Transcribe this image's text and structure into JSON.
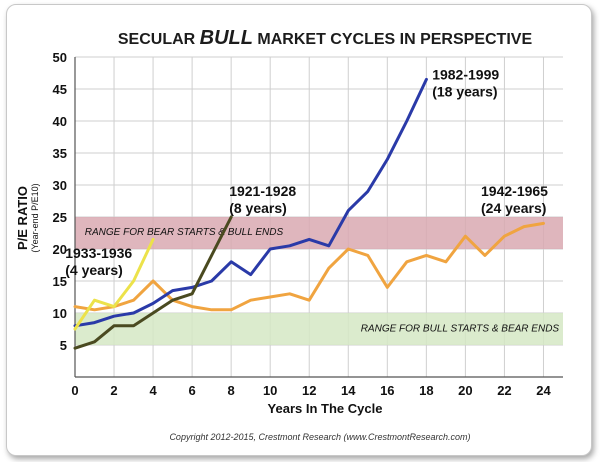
{
  "chart_data": {
    "type": "line",
    "title_parts": [
      "SECULAR ",
      "BULL",
      " MARKET CYCLES IN PERSPECTIVE"
    ],
    "xlabel": "Years In The Cycle",
    "ylabel": "P/E RATIO",
    "ylabel_sub": "(Year-end P/E10)",
    "xlim": [
      0,
      25
    ],
    "ylim": [
      0,
      50
    ],
    "x_ticks": [
      0,
      2,
      4,
      6,
      8,
      10,
      12,
      14,
      16,
      18,
      20,
      22,
      24
    ],
    "y_ticks": [
      5,
      10,
      15,
      20,
      25,
      30,
      35,
      40,
      45,
      50
    ],
    "grid": true,
    "bands": [
      {
        "label": "RANGE FOR BEAR STARTS & BULL ENDS",
        "y_from": 20,
        "y_to": 25,
        "color": "#d9a9b1",
        "label_x": 0.5,
        "label_y": 22.8,
        "anchor": "start"
      },
      {
        "label": "RANGE FOR BULL STARTS & BEAR ENDS",
        "y_from": 5,
        "y_to": 10,
        "color": "#d5e7c4",
        "label_x": 24.8,
        "label_y": 7.7,
        "anchor": "end"
      }
    ],
    "series": [
      {
        "name": "1942-1965",
        "color": "#f0a440",
        "x": [
          0,
          1,
          2,
          3,
          4,
          5,
          6,
          7,
          8,
          9,
          10,
          11,
          12,
          13,
          14,
          15,
          16,
          17,
          18,
          19,
          20,
          21,
          22,
          23,
          24
        ],
        "y": [
          11,
          10.5,
          11,
          12,
          15,
          12,
          11,
          10.5,
          10.5,
          12,
          12.5,
          13,
          12,
          17,
          20,
          19,
          14,
          18,
          19,
          18,
          22,
          19,
          22,
          23.5,
          24
        ]
      },
      {
        "name": "1982-1999",
        "color": "#2a3aa8",
        "x": [
          0,
          1,
          2,
          3,
          4,
          5,
          6,
          7,
          8,
          9,
          10,
          11,
          12,
          13,
          14,
          15,
          16,
          17,
          18
        ],
        "y": [
          8,
          8.5,
          9.5,
          10,
          11.5,
          13.5,
          14,
          15,
          18,
          16,
          20,
          20.5,
          21.5,
          20.5,
          26,
          29,
          34,
          40,
          46.5
        ]
      },
      {
        "name": "1921-1928",
        "color": "#4a4a20",
        "x": [
          0,
          1,
          2,
          3,
          4,
          5,
          6,
          7,
          8
        ],
        "y": [
          4.5,
          5.5,
          8,
          8,
          10,
          12,
          13,
          19,
          25
        ]
      },
      {
        "name": "1933-1936",
        "color": "#ece24a",
        "x": [
          0,
          1,
          2,
          3,
          4
        ],
        "y": [
          7.5,
          12,
          11,
          15,
          21.5
        ]
      }
    ],
    "annotations": [
      {
        "lines": [
          "1982-1999",
          "(18 years)"
        ],
        "x": 18.3,
        "y": 46.5
      },
      {
        "lines": [
          "1921-1928",
          "(8 years)"
        ],
        "x": 7.9,
        "y": 28.3
      },
      {
        "lines": [
          "1942-1965",
          "(24 years)"
        ],
        "x": 20.8,
        "y": 28.3
      },
      {
        "lines": [
          "1933-1936",
          "(4 years)"
        ],
        "x": -0.5,
        "y": 18.6
      }
    ]
  },
  "footer": {
    "copyright": "Copyright 2012-2015, Crestmont Research (www.CrestmontResearch.com)"
  }
}
